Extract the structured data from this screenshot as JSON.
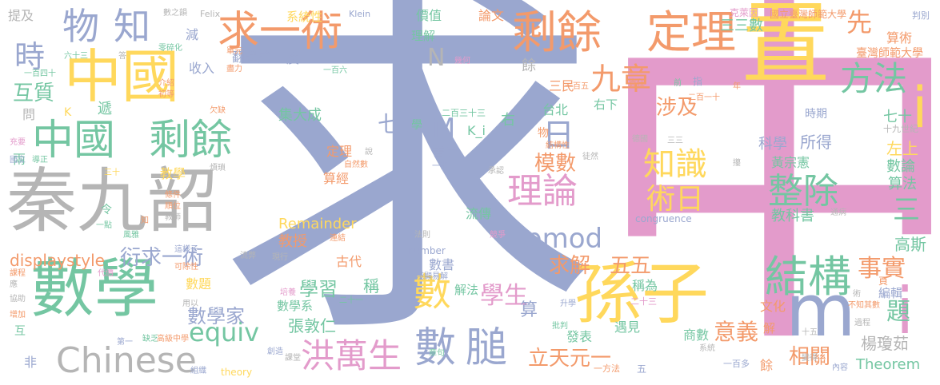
{
  "words": [
    {
      "text": "中",
      "color": "#e39bcb"
    },
    {
      "text": "求",
      "color": "#9aa7cf"
    },
    {
      "text": "秦九韶",
      "color": "#b5b5b5"
    },
    {
      "text": "數學",
      "color": "#74c6a2"
    },
    {
      "text": "中國",
      "color": "#ffd85c"
    },
    {
      "text": "置",
      "color": "#ffd85c"
    },
    {
      "text": "孫子",
      "color": "#ffd85c"
    },
    {
      "text": "m",
      "color": "#9aa7cf"
    },
    {
      "text": "i",
      "color": "#e39bcb"
    },
    {
      "text": "i",
      "color": "#ffd85c"
    },
    {
      "text": "剩餘",
      "color": "#f39a6b"
    },
    {
      "text": "定理",
      "color": "#f39a6b"
    },
    {
      "text": "中國",
      "color": "#74c6a2"
    },
    {
      "text": "剩餘",
      "color": "#74c6a2"
    },
    {
      "text": "求一術",
      "color": "#f39a6b"
    },
    {
      "text": "物",
      "color": "#9aa7cf"
    },
    {
      "text": "知",
      "color": "#9aa7cf"
    },
    {
      "text": "時",
      "color": "#9aa7cf"
    },
    {
      "text": "Chinese",
      "color": "#b5b5b5"
    },
    {
      "text": "equiv",
      "color": "#74c6a2"
    },
    {
      "text": "洪萬生",
      "color": "#e39bcb"
    },
    {
      "text": "數",
      "color": "#9aa7cf"
    },
    {
      "text": "數",
      "color": "#ffd85c"
    },
    {
      "text": "膇",
      "color": "#9aa7cf"
    },
    {
      "text": "結構",
      "color": "#74c6a2"
    },
    {
      "text": "理論",
      "color": "#e39bcb"
    },
    {
      "text": "方法",
      "color": "#74c6a2"
    },
    {
      "text": "九章",
      "color": "#f39a6b"
    },
    {
      "text": "整除",
      "color": "#74c6a2"
    },
    {
      "text": "知識",
      "color": "#ffd85c"
    },
    {
      "text": "術日",
      "color": "#ffd85c"
    },
    {
      "text": "pmod",
      "color": "#9aa7cf"
    },
    {
      "text": "日",
      "color": "#9aa7cf"
    },
    {
      "text": "先",
      "color": "#f39a6b"
    },
    {
      "text": "涉及",
      "color": "#f39a6b"
    },
    {
      "text": "事實",
      "color": "#f39a6b"
    },
    {
      "text": "三",
      "color": "#74c6a2"
    },
    {
      "text": "題",
      "color": "#74c6a2"
    },
    {
      "text": "意義",
      "color": "#f39a6b"
    },
    {
      "text": "立天元一",
      "color": "#f39a6b"
    },
    {
      "text": "學生",
      "color": "#e39bcb"
    },
    {
      "text": "求解",
      "color": "#f39a6b"
    },
    {
      "text": "五五",
      "color": "#f39a6b"
    },
    {
      "text": "模數",
      "color": "#f39a6b"
    },
    {
      "text": "七七",
      "color": "#9aa7cf"
    },
    {
      "text": "M",
      "color": "#9aa7cf"
    },
    {
      "text": "N",
      "color": "#b5b5b5"
    },
    {
      "text": "學習",
      "color": "#74c6a2"
    },
    {
      "text": "衍求一術",
      "color": "#9aa7cf"
    },
    {
      "text": "數學家",
      "color": "#9aa7cf"
    },
    {
      "text": "互質",
      "color": "#74c6a2"
    },
    {
      "text": "displaystyle",
      "color": "#f39a6b"
    },
    {
      "text": "Remainder",
      "color": "#ffd85c"
    },
    {
      "text": "張敦仁",
      "color": "#74c6a2"
    },
    {
      "text": "相關",
      "color": "#f39a6b"
    },
    {
      "text": "楊瓊茹",
      "color": "#b5b5b5"
    },
    {
      "text": "Theorem",
      "color": "#74c6a2"
    },
    {
      "text": "高斯",
      "color": "#74c6a2"
    },
    {
      "text": "算法",
      "color": "#74c6a2"
    },
    {
      "text": "數論",
      "color": "#74c6a2"
    },
    {
      "text": "左上",
      "color": "#ffd85c"
    },
    {
      "text": "七十",
      "color": "#74c6a2"
    },
    {
      "text": "科學",
      "color": "#9aa7cf"
    },
    {
      "text": "所得",
      "color": "#9aa7cf"
    },
    {
      "text": "黃宗憲",
      "color": "#74c6a2"
    },
    {
      "text": "教科書",
      "color": "#74c6a2"
    },
    {
      "text": "三三數",
      "color": "#74c6a2"
    },
    {
      "text": "算術",
      "color": "#f39a6b"
    },
    {
      "text": "臺灣師範大學",
      "color": "#f39a6b"
    },
    {
      "text": "國立臺灣師範大學",
      "color": "#f39a6b"
    },
    {
      "text": "克萊因",
      "color": "#e39bcb"
    },
    {
      "text": "判別",
      "color": "#9aa7cf"
    },
    {
      "text": "論文",
      "color": "#f39a6b"
    },
    {
      "text": "價值",
      "color": "#74c6a2"
    },
    {
      "text": "理解",
      "color": "#74c6a2"
    },
    {
      "text": "餘",
      "color": "#b5b5b5"
    },
    {
      "text": "三民",
      "color": "#f39a6b"
    },
    {
      "text": "台北",
      "color": "#74c6a2"
    },
    {
      "text": "右下",
      "color": "#74c6a2"
    },
    {
      "text": "右",
      "color": "#74c6a2"
    },
    {
      "text": "書局",
      "color": "#9aa7cf"
    },
    {
      "text": "定理",
      "color": "#f39a6b"
    },
    {
      "text": "算經",
      "color": "#f39a6b"
    },
    {
      "text": "教授",
      "color": "#f39a6b"
    },
    {
      "text": "集大成",
      "color": "#74c6a2"
    },
    {
      "text": "收入",
      "color": "#9aa7cf"
    },
    {
      "text": "翻譯成",
      "color": "#9aa7cf"
    },
    {
      "text": "系統性",
      "color": "#ffd85c"
    },
    {
      "text": "減",
      "color": "#9aa7cf"
    },
    {
      "text": "廣",
      "color": "#9aa7cf"
    },
    {
      "text": "提及",
      "color": "#b5b5b5"
    },
    {
      "text": "數之韻",
      "color": "#b5b5b5"
    },
    {
      "text": "Felix",
      "color": "#b5b5b5"
    },
    {
      "text": "Klein",
      "color": "#9aa7cf"
    },
    {
      "text": "流傳",
      "color": "#74c6a2"
    },
    {
      "text": "稱為",
      "color": "#74c6a2"
    },
    {
      "text": "古代",
      "color": "#f39a6b"
    },
    {
      "text": "數書",
      "color": "#9aa7cf"
    },
    {
      "text": "解法",
      "color": "#74c6a2"
    },
    {
      "text": "算",
      "color": "#9aa7cf"
    },
    {
      "text": "數學系",
      "color": "#74c6a2"
    },
    {
      "text": "數題",
      "color": "#ffd85c"
    },
    {
      "text": "發表",
      "color": "#74c6a2"
    },
    {
      "text": "商數",
      "color": "#74c6a2"
    },
    {
      "text": "遇見",
      "color": "#74c6a2"
    },
    {
      "text": "文化",
      "color": "#f39a6b"
    },
    {
      "text": "編輯",
      "color": "#9aa7cf"
    },
    {
      "text": "解",
      "color": "#f39a6b"
    },
    {
      "text": "教學",
      "color": "#ffd85c"
    },
    {
      "text": "稱",
      "color": "#74c6a2"
    },
    {
      "text": "通病",
      "color": "#b5b5b5"
    },
    {
      "text": "congruence",
      "color": "#9aa7cf"
    },
    {
      "text": "number",
      "color": "#9aa7cf"
    },
    {
      "text": "theory",
      "color": "#ffd85c"
    },
    {
      "text": "K_i",
      "color": "#74c6a2"
    },
    {
      "text": "K",
      "color": "#ffd85c"
    },
    {
      "text": "問",
      "color": "#b5b5b5"
    },
    {
      "text": "兩",
      "color": "#74c6a2"
    },
    {
      "text": "令",
      "color": "#74c6a2"
    },
    {
      "text": "非",
      "color": "#9aa7cf"
    },
    {
      "text": "互",
      "color": "#74c6a2"
    },
    {
      "text": "一百四十",
      "color": "#74c6a2"
    },
    {
      "text": "六十三",
      "color": "#74c6a2"
    },
    {
      "text": "遞",
      "color": "#74c6a2"
    },
    {
      "text": "一百六",
      "color": "#74c6a2"
    },
    {
      "text": "一百五",
      "color": "#f39a6b"
    },
    {
      "text": "二百三十三",
      "color": "#74c6a2"
    },
    {
      "text": "二十三",
      "color": "#e39bcb"
    },
    {
      "text": "二百一十",
      "color": "#f39a6b"
    },
    {
      "text": "二十一",
      "color": "#74c6a2"
    },
    {
      "text": "一百多",
      "color": "#9aa7cf"
    },
    {
      "text": "一方法",
      "color": "#f39a6b"
    },
    {
      "text": "十九世紀",
      "color": "#b5b5b5"
    },
    {
      "text": "時期",
      "color": "#9aa7cf"
    },
    {
      "text": "頁",
      "color": "#f39a6b"
    },
    {
      "text": "物",
      "color": "#f39a6b"
    },
    {
      "text": "學",
      "color": "#74c6a2"
    },
    {
      "text": "餘",
      "color": "#f39a6b"
    },
    {
      "text": "五",
      "color": "#9aa7cf"
    },
    {
      "text": "零碎化",
      "color": "#74c6a2"
    },
    {
      "text": "單元",
      "color": "#f39a6b"
    },
    {
      "text": "幾何",
      "color": "#e39bcb"
    },
    {
      "text": "盡力",
      "color": "#f39a6b"
    },
    {
      "text": "介紹",
      "color": "#f39a6b"
    },
    {
      "text": "初等",
      "color": "#f39a6b"
    },
    {
      "text": "欠缺",
      "color": "#f39a6b"
    },
    {
      "text": "導正",
      "color": "#74c6a2"
    },
    {
      "text": "充要",
      "color": "#e39bcb"
    },
    {
      "text": "國立",
      "color": "#9aa7cf"
    },
    {
      "text": "三十",
      "color": "#ffd85c"
    },
    {
      "text": "煩瑣",
      "color": "#b5b5b5"
    },
    {
      "text": "條件",
      "color": "#f39a6b"
    },
    {
      "text": "順位",
      "color": "#f39a6b"
    },
    {
      "text": "教師",
      "color": "#b5b5b5"
    },
    {
      "text": "一點",
      "color": "#74c6a2"
    },
    {
      "text": "知",
      "color": "#f39a6b"
    },
    {
      "text": "風雅",
      "color": "#74c6a2"
    },
    {
      "text": "這樣子",
      "color": "#9aa7cf"
    },
    {
      "text": "可除性",
      "color": "#f39a6b"
    },
    {
      "text": "代價",
      "color": "#e39bcb"
    },
    {
      "text": "課程",
      "color": "#f39a6b"
    },
    {
      "text": "應",
      "color": "#b5b5b5"
    },
    {
      "text": "協助",
      "color": "#b5b5b5"
    },
    {
      "text": "增加",
      "color": "#f39a6b"
    },
    {
      "text": "第一",
      "color": "#9aa7cf"
    },
    {
      "text": "缺乏",
      "color": "#74c6a2"
    },
    {
      "text": "高級中學",
      "color": "#f39a6b"
    },
    {
      "text": "組織",
      "color": "#9aa7cf"
    },
    {
      "text": "創造",
      "color": "#9aa7cf"
    },
    {
      "text": "用以",
      "color": "#b5b5b5"
    },
    {
      "text": "培養",
      "color": "#e39bcb"
    },
    {
      "text": "淺顯易解",
      "color": "#9aa7cf"
    },
    {
      "text": "現行",
      "color": "#b5b5b5"
    },
    {
      "text": "流弊",
      "color": "#b5b5b5"
    },
    {
      "text": "連結",
      "color": "#f39a6b"
    },
    {
      "text": "法則",
      "color": "#b5b5b5"
    },
    {
      "text": "競爭",
      "color": "#e39bcb"
    },
    {
      "text": "升學",
      "color": "#9aa7cf"
    },
    {
      "text": "批判",
      "color": "#74c6a2"
    },
    {
      "text": "章句",
      "color": "#74c6a2"
    },
    {
      "text": "課堂",
      "color": "#b5b5b5"
    },
    {
      "text": "自然數",
      "color": "#f39a6b"
    },
    {
      "text": "說",
      "color": "#b5b5b5"
    },
    {
      "text": "一術",
      "color": "#9aa7cf"
    },
    {
      "text": "承認",
      "color": "#b5b5b5"
    },
    {
      "text": "結構性",
      "color": "#f39a6b"
    },
    {
      "text": "徒然",
      "color": "#b5b5b5"
    },
    {
      "text": "德國",
      "color": "#b5b5b5"
    },
    {
      "text": "三三",
      "color": "#b5b5b5"
    },
    {
      "text": "攥",
      "color": "#b5b5b5"
    },
    {
      "text": "責任",
      "color": "#f39a6b"
    },
    {
      "text": "前",
      "color": "#74c6a2"
    },
    {
      "text": "指",
      "color": "#9aa7cf"
    },
    {
      "text": "年",
      "color": "#f39a6b"
    },
    {
      "text": "不知其數",
      "color": "#f39a6b"
    },
    {
      "text": "術",
      "color": "#b5b5b5"
    },
    {
      "text": "過程",
      "color": "#b5b5b5"
    },
    {
      "text": "系統",
      "color": "#b5b5b5"
    },
    {
      "text": "十五",
      "color": "#b5b5b5"
    },
    {
      "text": "變得",
      "color": "#b5b5b5"
    },
    {
      "text": "內容",
      "color": "#9aa7cf"
    },
    {
      "text": "答",
      "color": "#b5b5b5"
    }
  ]
}
